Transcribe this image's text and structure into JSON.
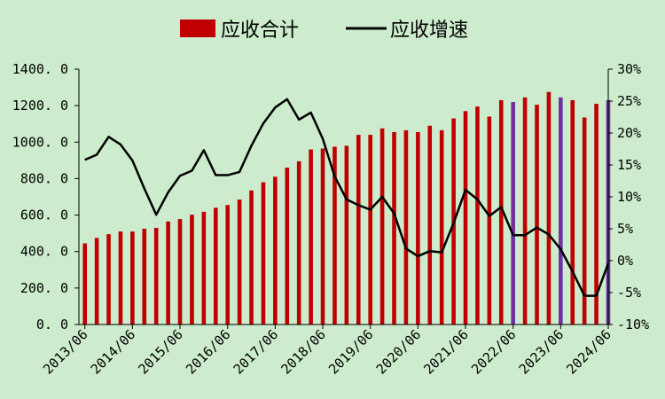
{
  "chart_data": {
    "type": "bar",
    "title": "",
    "xlabel": "",
    "ylabel": "",
    "legend": {
      "placement": "top-center",
      "items": [
        {
          "label": "应收合计",
          "kind": "bar",
          "color": "#c00000"
        },
        {
          "label": "应收增速",
          "kind": "line",
          "color": "#000000"
        }
      ]
    },
    "y_left": {
      "range": [
        0,
        1400
      ],
      "ticks": [
        "0. 0",
        "200. 0",
        "400. 0",
        "600. 0",
        "800. 0",
        "1000. 0",
        "1200. 0",
        "1400. 0"
      ],
      "tick_values": [
        0,
        200,
        400,
        600,
        800,
        1000,
        1200,
        1400
      ]
    },
    "y_right": {
      "range": [
        -10,
        30
      ],
      "ticks": [
        "-10%",
        "-5%",
        "0%",
        "5%",
        "10%",
        "15%",
        "20%",
        "25%",
        "30%"
      ],
      "tick_values": [
        -10,
        -5,
        0,
        5,
        10,
        15,
        20,
        25,
        30
      ]
    },
    "x_tick_labels": [
      "2013/06",
      "2014/06",
      "2015/06",
      "2016/06",
      "2017/06",
      "2018/06",
      "2019/06",
      "2020/06",
      "2021/06",
      "2022/06",
      "2023/06",
      "2024/06"
    ],
    "x_tick_indices": [
      0,
      4,
      8,
      12,
      16,
      20,
      24,
      28,
      32,
      36,
      40,
      44
    ],
    "grid": false,
    "colors": {
      "bar": "#c00000",
      "bar_highlight": "#7030a0",
      "line": "#000000",
      "background": "#cdeccd"
    },
    "highlight_indices": [
      36,
      40,
      44
    ],
    "series": [
      {
        "name": "应收合计",
        "kind": "bar",
        "axis": "left",
        "values": [
          445,
          475,
          495,
          510,
          510,
          525,
          530,
          565,
          578,
          602,
          618,
          640,
          655,
          685,
          735,
          780,
          810,
          860,
          895,
          960,
          965,
          975,
          980,
          1040,
          1040,
          1075,
          1055,
          1065,
          1055,
          1090,
          1065,
          1130,
          1170,
          1195,
          1140,
          1230,
          1220,
          1245,
          1205,
          1275,
          1245,
          1230,
          1135,
          1210,
          1230
        ]
      },
      {
        "name": "应收增速",
        "kind": "line",
        "axis": "right",
        "values": [
          15.8,
          16.6,
          19.4,
          18.2,
          15.7,
          11.3,
          7.2,
          10.7,
          13.3,
          14.1,
          17.3,
          13.4,
          13.4,
          13.9,
          18.0,
          21.5,
          24.0,
          25.3,
          22.1,
          23.2,
          19.1,
          13.2,
          9.6,
          8.7,
          8.0,
          10.0,
          7.4,
          1.9,
          0.7,
          1.5,
          1.3,
          5.9,
          11.1,
          9.6,
          7.0,
          8.4,
          4.0,
          4.0,
          5.2,
          4.1,
          1.8,
          -1.7,
          -5.5,
          -5.5,
          -0.4
        ]
      }
    ]
  }
}
